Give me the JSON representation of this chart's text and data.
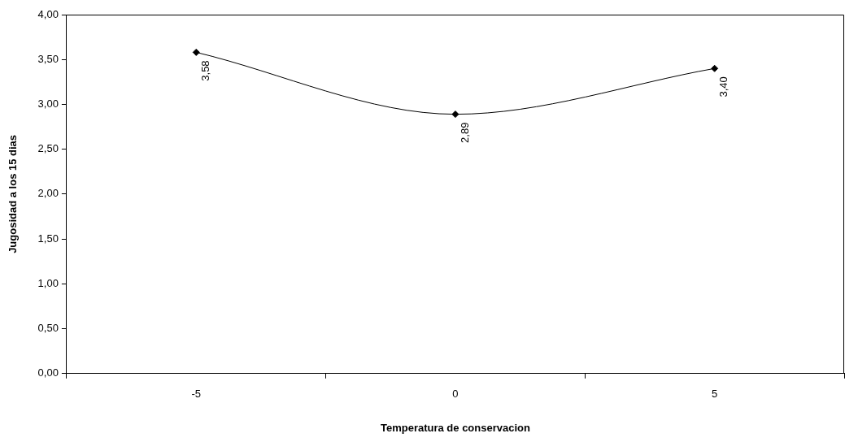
{
  "chart_data": {
    "type": "line",
    "xlabel": "Temperatura de conservacion",
    "ylabel": "Jugosidad a los 15 dias",
    "categories": [
      "-5",
      "0",
      "5"
    ],
    "series": [
      {
        "color": "#000000",
        "values": [
          3.58,
          2.89,
          3.4
        ],
        "value_labels": [
          "3,58",
          "2,89",
          "3,40"
        ]
      }
    ],
    "ylim": [
      0,
      4
    ],
    "yticks": [
      {
        "value": 0,
        "label": "0,00"
      },
      {
        "value": 0.5,
        "label": "0,50"
      },
      {
        "value": 1,
        "label": "1,00"
      },
      {
        "value": 1.5,
        "label": "1,50"
      },
      {
        "value": 2,
        "label": "2,00"
      },
      {
        "value": 2.5,
        "label": "2,50"
      },
      {
        "value": 3,
        "label": "3,00"
      },
      {
        "value": 3.5,
        "label": "3,50"
      },
      {
        "value": 4,
        "label": "4,00"
      }
    ],
    "grid": false,
    "legend": false,
    "marker": "diamond",
    "line_style": "solid"
  }
}
